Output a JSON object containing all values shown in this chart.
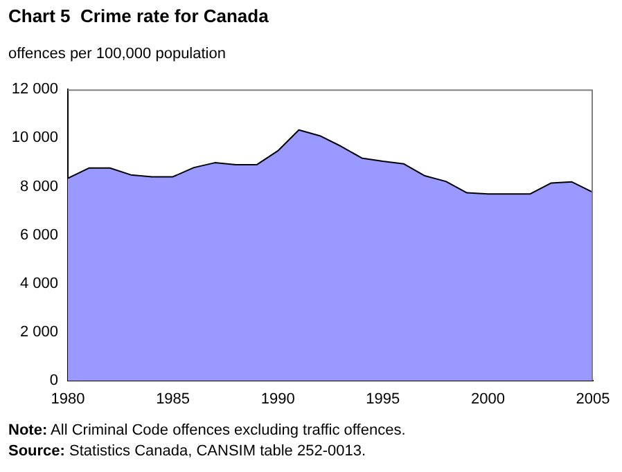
{
  "chart_data": {
    "type": "area",
    "title": "Chart 5  Crime rate for Canada",
    "ylabel": "offences per 100,000 population",
    "x": [
      1980,
      1981,
      1982,
      1983,
      1984,
      1985,
      1986,
      1987,
      1988,
      1989,
      1990,
      1991,
      1992,
      1993,
      1994,
      1995,
      1996,
      1997,
      1998,
      1999,
      2000,
      2001,
      2002,
      2003,
      2004,
      2005
    ],
    "values": [
      8340,
      8760,
      8760,
      8480,
      8400,
      8400,
      8780,
      8980,
      8900,
      8900,
      9470,
      10330,
      10090,
      9660,
      9170,
      9040,
      8930,
      8440,
      8210,
      7740,
      7690,
      7690,
      7690,
      8140,
      8190,
      7760
    ],
    "color": "#9999ff",
    "xlim": [
      1980,
      2005
    ],
    "xticks": [
      1980,
      1985,
      1990,
      1995,
      2000,
      2005
    ],
    "ylim": [
      0,
      12000
    ],
    "yticks": [
      0,
      {
        "value": 2000,
        "label": "2 000"
      },
      {
        "value": 4000,
        "label": "4 000"
      },
      {
        "value": 6000,
        "label": "6 000"
      },
      {
        "value": 8000,
        "label": "8 000"
      },
      {
        "value": 10000,
        "label": "10 000"
      },
      {
        "value": 12000,
        "label": "12 000"
      }
    ],
    "grid": false,
    "legend": false,
    "annotations": [
      "Note: All Criminal Code offences excluding traffic offences.",
      "Source: Statistics Canada, CANSIM table 252-0013."
    ]
  }
}
